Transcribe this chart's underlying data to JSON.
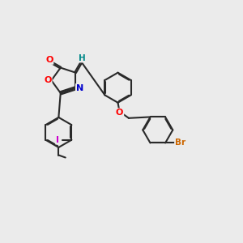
{
  "bg_color": "#ebebeb",
  "bond_color": "#2a2a2a",
  "atom_colors": {
    "O": "#ff0000",
    "N": "#0000cc",
    "I": "#cc00cc",
    "Br": "#cc6600",
    "H": "#008888",
    "C": "#2a2a2a"
  },
  "lw": 1.5,
  "dbl_off": 0.018
}
